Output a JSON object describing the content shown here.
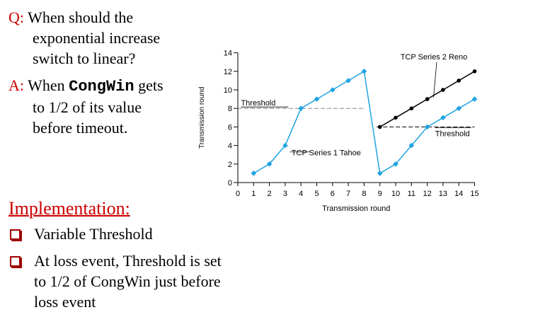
{
  "question": {
    "label": "Q:",
    "lines": [
      "When should the",
      "exponential increase",
      "switch to linear?"
    ]
  },
  "answer": {
    "label": "A:",
    "line1_pre": "When ",
    "code": "CongWin",
    "line1_post": " gets",
    "lines": [
      "to 1/2 of its value",
      "before timeout."
    ]
  },
  "implementation": {
    "heading": "Implementation:",
    "bullets": [
      {
        "lines": [
          "Variable Threshold"
        ]
      },
      {
        "lines": [
          "At loss event, Threshold is set",
          "to 1/2 of CongWin just before",
          "loss event"
        ]
      }
    ]
  },
  "colors": {
    "accent_red": "#cc0000",
    "series_cyan": "#1ea4e0",
    "series_black": "#000000",
    "threshold_gray": "#888888"
  },
  "chart_data": {
    "type": "line",
    "xlabel": "Transmission round",
    "ylabel": "Transmission round",
    "xlim": [
      0,
      15
    ],
    "ylim": [
      0,
      14
    ],
    "x_ticks": [
      0,
      1,
      2,
      3,
      4,
      5,
      6,
      7,
      8,
      9,
      10,
      11,
      12,
      13,
      14,
      15
    ],
    "y_ticks": [
      0,
      2,
      4,
      6,
      8,
      10,
      12,
      14
    ],
    "series": [
      {
        "name": "TCP Series 1 Tahoe",
        "color": "#1ea4e0",
        "marker": "diamond",
        "x": [
          1,
          2,
          3,
          4,
          5,
          6,
          7,
          8,
          9,
          10,
          11,
          12,
          13,
          14,
          15
        ],
        "y": [
          1,
          2,
          4,
          8,
          9,
          10,
          11,
          12,
          1,
          2,
          4,
          6,
          7,
          8,
          9
        ]
      },
      {
        "name": "TCP Series 2 Reno",
        "color": "#000000",
        "marker": "circle",
        "x": [
          9,
          10,
          11,
          12,
          13,
          14,
          15
        ],
        "y": [
          6,
          7,
          8,
          9,
          10,
          11,
          12
        ]
      }
    ],
    "thresholds": [
      {
        "label": "Threshold",
        "y": 8,
        "x": [
          0,
          8
        ]
      },
      {
        "label": "Threshold",
        "y": 6,
        "x": [
          8.8,
          15
        ]
      }
    ]
  }
}
